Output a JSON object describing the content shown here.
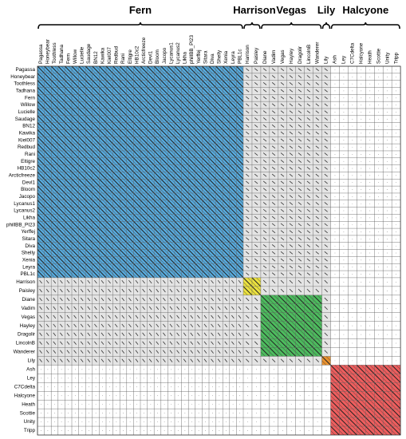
{
  "groups": [
    {
      "label": "Fern",
      "color": "#58acdf",
      "members": [
        "Pagassa",
        "Honeybear",
        "Toothless",
        "Tadhana",
        "Fern",
        "Willow",
        "Lucielle",
        "Saudage",
        "BN12",
        "Kawika",
        "Kiel007",
        "Redbud",
        "Rani",
        "Eltigre",
        "HB10c2",
        "Arcticfreeze",
        "Devl1",
        "Bloom",
        "Jacopo",
        "Lycanus1",
        "Lycanus2",
        "Likha",
        "phillBB_PI23",
        "Yerffej",
        "Sitara",
        "Diva",
        "Shelly",
        "Xenia",
        "Leyra",
        "PBL1c"
      ]
    },
    {
      "label": "Harrison",
      "color": "#ece23f",
      "members": [
        "Harrison",
        "Paisley"
      ]
    },
    {
      "label": "Vegas",
      "color": "#4dbb5e",
      "members": [
        "Diane",
        "Vadim",
        "Vegas",
        "Hayley",
        "Dragolir",
        "LincolnB",
        "Wanderer"
      ]
    },
    {
      "label": "Lily",
      "color": "#e8912f",
      "members": [
        "Lily"
      ]
    },
    {
      "label": "Halcyone",
      "color": "#ee5e5e",
      "members": [
        "Ash",
        "Ley",
        "C7Cdelta",
        "Halcyone",
        "Heath",
        "Scottie",
        "Unity",
        "Tripp"
      ]
    }
  ]
}
